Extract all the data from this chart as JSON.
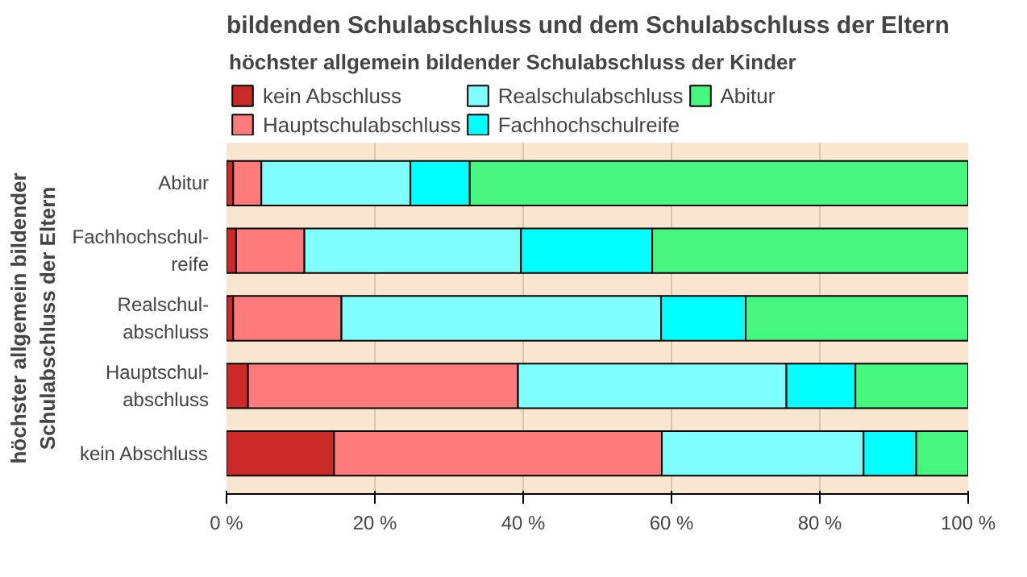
{
  "chart_data": {
    "type": "bar",
    "orientation": "horizontal",
    "stacked": true,
    "title": "bildenden Schulabschluss und dem Schulabschluss der Eltern",
    "legend_title": "höchster allgemein bildender Schulabschluss der Kinder",
    "ylabel": "höchster allgemein bildender\nSchulabschluss der Eltern",
    "categories": [
      "Abitur",
      "Fachhochschul-\nreife",
      "Realschul-\nabschluss",
      "Hauptschul-\nabschluss",
      "kein Abschluss"
    ],
    "series": [
      {
        "name": "kein Abschluss",
        "color": "#cc2929",
        "values": [
          0.9,
          1.3,
          0.9,
          2.9,
          14.5
        ]
      },
      {
        "name": "Hauptschulabschluss",
        "color": "#ff7b7b",
        "values": [
          3.8,
          9.2,
          14.6,
          36.4,
          44.2
        ]
      },
      {
        "name": "Realschulabschluss",
        "color": "#80ffff",
        "values": [
          20.1,
          29.2,
          43.1,
          36.2,
          27.2
        ]
      },
      {
        "name": "Fachhochschulreife",
        "color": "#00ffff",
        "values": [
          8.0,
          17.7,
          11.4,
          9.3,
          7.1
        ]
      },
      {
        "name": "Abitur",
        "color": "#46f77f",
        "values": [
          67.2,
          42.6,
          30.0,
          15.2,
          7.0
        ]
      }
    ],
    "xlim": [
      0,
      100
    ],
    "xticks": [
      {
        "value": 0,
        "label": "0 %"
      },
      {
        "value": 20,
        "label": "20 %"
      },
      {
        "value": 40,
        "label": "40 %"
      },
      {
        "value": 60,
        "label": "60 %"
      },
      {
        "value": 80,
        "label": "80 %"
      },
      {
        "value": 100,
        "label": "100 %"
      }
    ],
    "grid": "x",
    "legend": "top"
  }
}
